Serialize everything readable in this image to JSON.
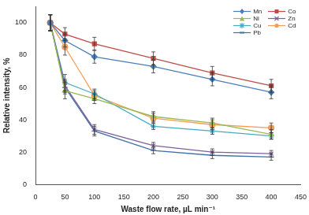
{
  "chart_data": {
    "type": "line",
    "x_label": "Waste flow rate, µL min⁻¹",
    "y_label": "Relative intensity, %",
    "x": [
      25,
      50,
      100,
      200,
      300,
      400
    ],
    "xlim": [
      0,
      450
    ],
    "xticks": [
      0,
      50,
      100,
      150,
      200,
      250,
      300,
      350,
      400,
      450
    ],
    "ylim": [
      0,
      110
    ],
    "yticks": [
      0,
      20,
      40,
      60,
      80,
      100
    ],
    "grid": false,
    "legend": "upper right",
    "series": [
      {
        "name": "Mn",
        "color": "#4a7ebb",
        "marker": "diamond",
        "values": [
          100,
          89,
          79,
          73,
          65,
          57
        ],
        "errors": [
          5,
          4,
          4,
          4,
          4,
          4
        ]
      },
      {
        "name": "Co",
        "color": "#be4b48",
        "marker": "square",
        "values": [
          100,
          93,
          87,
          78,
          69,
          61
        ],
        "errors": [
          5,
          4,
          4,
          4,
          4,
          4
        ]
      },
      {
        "name": "Ni",
        "color": "#98b954",
        "marker": "triangle",
        "values": [
          100,
          58,
          53,
          42,
          38,
          31
        ],
        "errors": [
          5,
          5,
          3,
          3,
          3,
          3
        ]
      },
      {
        "name": "Zn",
        "color": "#7d60a0",
        "marker": "x",
        "values": [
          100,
          61,
          34,
          24,
          20,
          19
        ],
        "errors": [
          5,
          4,
          3,
          2,
          2,
          2
        ]
      },
      {
        "name": "Cu",
        "color": "#46aac5",
        "marker": "star",
        "values": [
          100,
          63,
          56,
          36,
          33,
          30
        ],
        "errors": [
          5,
          5,
          3,
          2,
          2,
          2
        ]
      },
      {
        "name": "Cd",
        "color": "#f59d56",
        "marker": "circle",
        "values": [
          100,
          85,
          55,
          41,
          37,
          35
        ],
        "errors": [
          5,
          5,
          3,
          3,
          3,
          3
        ]
      },
      {
        "name": "Pb",
        "color": "#3f6fa8",
        "marker": "dash",
        "values": [
          100,
          60,
          33,
          21,
          18,
          17
        ],
        "errors": [
          5,
          4,
          3,
          2,
          2,
          2
        ]
      }
    ]
  }
}
